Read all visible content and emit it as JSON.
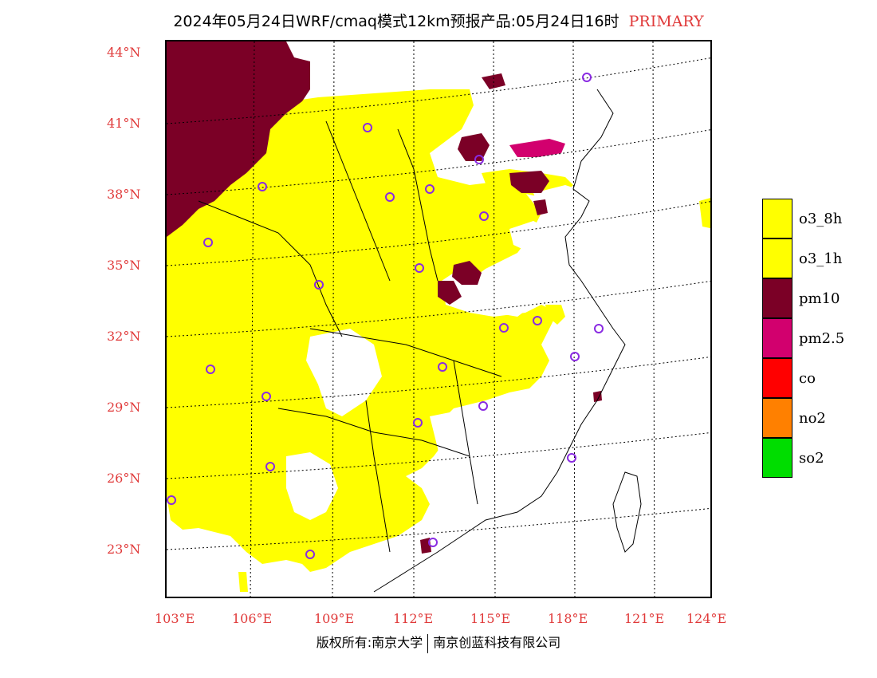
{
  "title": {
    "text": "2024年05月24日WRF/cmaq模式12km预报产品:05月24日16时",
    "tag": "PRIMARY",
    "tag_color": "#e03a3a"
  },
  "lat_labels": [
    "44°N",
    "41°N",
    "38°N",
    "35°N",
    "32°N",
    "29°N",
    "26°N",
    "23°N"
  ],
  "lon_labels": [
    "103°E",
    "106°E",
    "109°E",
    "112°E",
    "115°E",
    "118°E",
    "121°E",
    "124°E"
  ],
  "legend": [
    {
      "label": "o3_8h",
      "color": "#ffff00"
    },
    {
      "label": "o3_1h",
      "color": "#ffff00"
    },
    {
      "label": "pm10",
      "color": "#7b0026"
    },
    {
      "label": "pm2.5",
      "color": "#d2006e"
    },
    {
      "label": "co",
      "color": "#ff0000"
    },
    {
      "label": "no2",
      "color": "#ff8000"
    },
    {
      "label": "so2",
      "color": "#00dd00"
    }
  ],
  "footer": {
    "left": "版权所有:南京大学",
    "right": "南京创蓝科技有限公司"
  },
  "colors": {
    "o3": "#ffff00",
    "pm10": "#7b0026",
    "pm25": "#d2006e",
    "axis_label": "#e03a3a",
    "marker": "#8a2be2"
  }
}
